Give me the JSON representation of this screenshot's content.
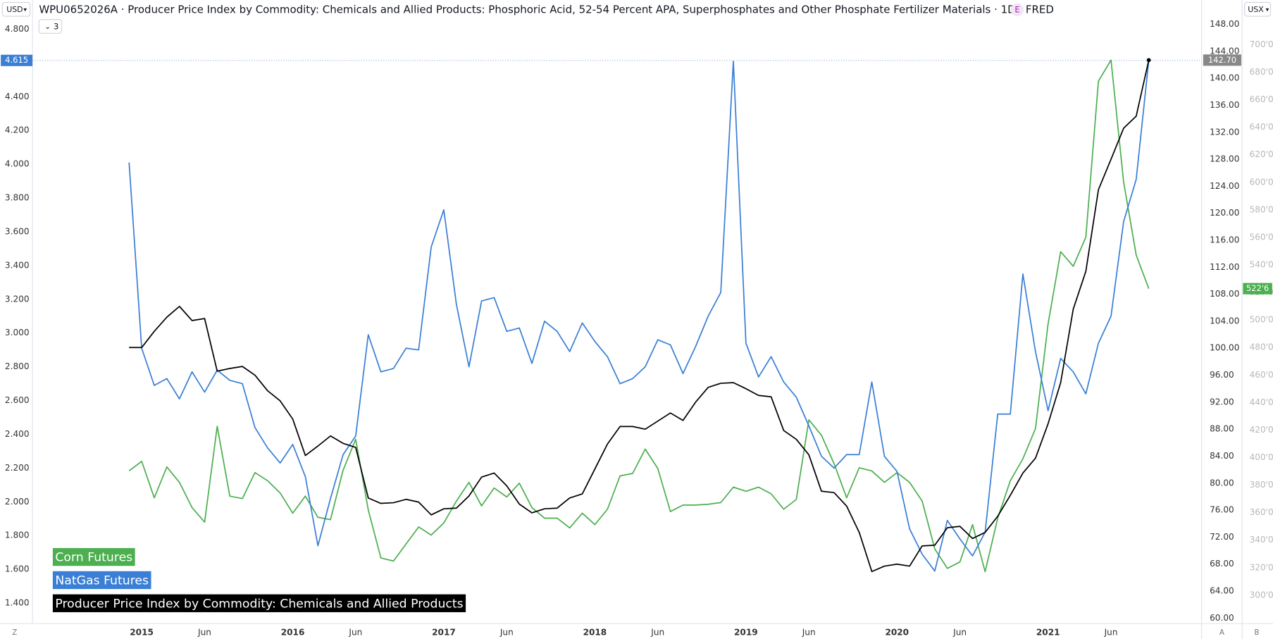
{
  "toolbar": {
    "left_currency": "USD",
    "right_currency": "USX",
    "indicator_badge": "E",
    "collapsed_count": 3,
    "bottom_left": "Z",
    "bottom_right_a": "A",
    "bottom_right_b": "B"
  },
  "chart_data": {
    "type": "line",
    "title": "WPU0652026A · Producer Price Index by Commodity: Chemicals and Allied Products: Phosphoric Acid, 52-54 Percent APA, Superphosphates and Other Phosphate Fertilizer Materials · 1D · FRED",
    "x": [
      "2014-12",
      "2015-01",
      "2015-02",
      "2015-03",
      "2015-04",
      "2015-05",
      "2015-06",
      "2015-07",
      "2015-08",
      "2015-09",
      "2015-10",
      "2015-11",
      "2015-12",
      "2016-01",
      "2016-02",
      "2016-03",
      "2016-04",
      "2016-05",
      "2016-06",
      "2016-07",
      "2016-08",
      "2016-09",
      "2016-10",
      "2016-11",
      "2016-12",
      "2017-01",
      "2017-02",
      "2017-03",
      "2017-04",
      "2017-05",
      "2017-06",
      "2017-07",
      "2017-08",
      "2017-09",
      "2017-10",
      "2017-11",
      "2017-12",
      "2018-01",
      "2018-02",
      "2018-03",
      "2018-04",
      "2018-05",
      "2018-06",
      "2018-07",
      "2018-08",
      "2018-09",
      "2018-10",
      "2018-11",
      "2018-12",
      "2019-01",
      "2019-02",
      "2019-03",
      "2019-04",
      "2019-05",
      "2019-06",
      "2019-07",
      "2019-08",
      "2019-09",
      "2019-10",
      "2019-11",
      "2019-12",
      "2020-01",
      "2020-02",
      "2020-03",
      "2020-04",
      "2020-05",
      "2020-06",
      "2020-07",
      "2020-08",
      "2020-09",
      "2020-10",
      "2020-11",
      "2020-12",
      "2021-01",
      "2021-02",
      "2021-03",
      "2021-04",
      "2021-05",
      "2021-06",
      "2021-07",
      "2021-08",
      "2021-09"
    ],
    "xticks": [
      {
        "value": "2015-01",
        "label": "2015"
      },
      {
        "value": "2015-06",
        "label": "Jun"
      },
      {
        "value": "2016-01",
        "label": "2016"
      },
      {
        "value": "2016-06",
        "label": "Jun"
      },
      {
        "value": "2017-01",
        "label": "2017"
      },
      {
        "value": "2017-06",
        "label": "Jun"
      },
      {
        "value": "2018-01",
        "label": "2018"
      },
      {
        "value": "2018-06",
        "label": "Jun"
      },
      {
        "value": "2019-01",
        "label": "2019"
      },
      {
        "value": "2019-06",
        "label": "Jun"
      },
      {
        "value": "2020-01",
        "label": "2020"
      },
      {
        "value": "2020-06",
        "label": "Jun"
      },
      {
        "value": "2021-01",
        "label": "2021"
      },
      {
        "value": "2021-06",
        "label": "Jun"
      }
    ],
    "ylim": [
      1.279,
      4.867
    ],
    "yticks": [
      {
        "value": 1.4,
        "label": "1.400"
      },
      {
        "value": 1.6,
        "label": "1.600"
      },
      {
        "value": 1.8,
        "label": "1.800"
      },
      {
        "value": 2.0,
        "label": "2.000"
      },
      {
        "value": 2.2,
        "label": "2.200"
      },
      {
        "value": 2.4,
        "label": "2.400"
      },
      {
        "value": 2.6,
        "label": "2.600"
      },
      {
        "value": 2.8,
        "label": "2.800"
      },
      {
        "value": 3.0,
        "label": "3.000"
      },
      {
        "value": 3.2,
        "label": "3.200"
      },
      {
        "value": 3.4,
        "label": "3.400"
      },
      {
        "value": 3.6,
        "label": "3.600"
      },
      {
        "value": 3.8,
        "label": "3.800"
      },
      {
        "value": 4.0,
        "label": "4.000"
      },
      {
        "value": 4.2,
        "label": "4.200"
      },
      {
        "value": 4.4,
        "label": "4.400"
      },
      {
        "value": 4.8,
        "label": "4.800"
      }
    ],
    "y2lim": [
      59.19,
      148.96
    ],
    "y2ticks": [
      {
        "value": 60,
        "label": "60.00"
      },
      {
        "value": 64,
        "label": "64.00"
      },
      {
        "value": 68,
        "label": "68.00"
      },
      {
        "value": 72,
        "label": "72.00"
      },
      {
        "value": 76,
        "label": "76.00"
      },
      {
        "value": 80,
        "label": "80.00"
      },
      {
        "value": 84,
        "label": "84.00"
      },
      {
        "value": 88,
        "label": "88.00"
      },
      {
        "value": 92,
        "label": "92.00"
      },
      {
        "value": 96,
        "label": "96.00"
      },
      {
        "value": 100,
        "label": "100.00"
      },
      {
        "value": 104,
        "label": "104.00"
      },
      {
        "value": 108,
        "label": "108.00"
      },
      {
        "value": 112,
        "label": "112.00"
      },
      {
        "value": 116,
        "label": "116.00"
      },
      {
        "value": 120,
        "label": "120.00"
      },
      {
        "value": 124,
        "label": "124.00"
      },
      {
        "value": 128,
        "label": "128.00"
      },
      {
        "value": 132,
        "label": "132.00"
      },
      {
        "value": 136,
        "label": "136.00"
      },
      {
        "value": 140,
        "label": "140.00"
      },
      {
        "value": 144,
        "label": "144.00"
      },
      {
        "value": 148,
        "label": "148.00"
      }
    ],
    "y3lim": [
      279.4,
      719.5
    ],
    "y3ticks": [
      {
        "value": 300,
        "label": "300'0"
      },
      {
        "value": 320,
        "label": "320'0"
      },
      {
        "value": 340,
        "label": "340'0"
      },
      {
        "value": 360,
        "label": "360'0"
      },
      {
        "value": 380,
        "label": "380'0"
      },
      {
        "value": 400,
        "label": "400'0"
      },
      {
        "value": 420,
        "label": "420'0"
      },
      {
        "value": 440,
        "label": "440'0"
      },
      {
        "value": 460,
        "label": "460'0"
      },
      {
        "value": 480,
        "label": "480'0"
      },
      {
        "value": 500,
        "label": "500'0"
      },
      {
        "value": 520,
        "label": "520'0"
      },
      {
        "value": 540,
        "label": "540'0"
      },
      {
        "value": 560,
        "label": "560'0"
      },
      {
        "value": 580,
        "label": "580'0"
      },
      {
        "value": 600,
        "label": "600'0"
      },
      {
        "value": 620,
        "label": "620'0"
      },
      {
        "value": 640,
        "label": "640'0"
      },
      {
        "value": 660,
        "label": "660'0"
      },
      {
        "value": 680,
        "label": "680'0"
      },
      {
        "value": 700,
        "label": "700'0"
      }
    ],
    "grid": false,
    "legend": "bottom-left",
    "series": [
      {
        "name": "Corn Futures",
        "color": "#4caf50",
        "axis": "y3",
        "values": [
          390.3,
          397.3,
          370.8,
          393.2,
          382.0,
          363.7,
          353.1,
          422.7,
          372.0,
          370.2,
          389.1,
          383.2,
          374.3,
          359.6,
          372.0,
          356.6,
          354.9,
          390.9,
          413.3,
          362.0,
          327.1,
          324.8,
          337.2,
          349.6,
          343.7,
          352.5,
          368.4,
          382.0,
          364.9,
          377.9,
          371.4,
          381.4,
          363.7,
          356.0,
          356.0,
          348.9,
          359.6,
          351.3,
          362.5,
          386.7,
          388.5,
          406.2,
          392.0,
          360.8,
          365.5,
          365.5,
          366.1,
          367.3,
          378.5,
          375.5,
          378.5,
          373.7,
          362.5,
          369.6,
          427.4,
          416.2,
          395.6,
          370.8,
          392.6,
          390.3,
          382.0,
          389.1,
          382.0,
          368.4,
          333.6,
          319.5,
          324.2,
          351.3,
          317.1,
          356.0,
          383.2,
          399.1,
          421.1,
          497.1,
          549.6,
          539.0,
          560.2,
          673.5,
          688.8,
          600.3,
          547.2,
          522.75
        ],
        "value_labels": [
          null,
          null,
          null,
          null,
          null,
          null,
          null,
          null,
          null,
          null,
          null,
          null,
          null,
          null,
          null,
          null,
          null,
          null,
          null,
          null,
          null,
          null,
          null,
          null,
          null,
          null,
          null,
          null,
          null,
          null,
          null,
          null,
          null,
          null,
          null,
          null,
          null,
          null,
          null,
          null,
          null,
          null,
          null,
          null,
          null,
          null,
          null,
          null,
          null,
          null,
          null,
          null,
          null,
          null,
          null,
          null,
          null,
          null,
          null,
          null,
          null,
          null,
          null,
          null,
          null,
          null,
          null,
          null,
          null,
          null,
          null,
          null,
          null,
          null,
          null,
          null,
          null,
          null,
          null,
          null,
          null,
          "522'6"
        ]
      },
      {
        "name": "NatGas Futures",
        "color": "#3a7fd5",
        "axis": "y",
        "values": [
          4.01,
          2.91,
          2.69,
          2.73,
          2.61,
          2.77,
          2.65,
          2.78,
          2.72,
          2.7,
          2.44,
          2.32,
          2.23,
          2.34,
          2.15,
          1.74,
          2.02,
          2.28,
          2.39,
          2.99,
          2.77,
          2.79,
          2.91,
          2.9,
          3.51,
          3.73,
          3.17,
          2.8,
          3.19,
          3.21,
          3.01,
          3.03,
          2.82,
          3.07,
          3.01,
          2.89,
          3.06,
          2.95,
          2.86,
          2.7,
          2.73,
          2.8,
          2.96,
          2.93,
          2.76,
          2.92,
          3.1,
          3.24,
          4.61,
          2.94,
          2.74,
          2.86,
          2.71,
          2.62,
          2.45,
          2.27,
          2.2,
          2.28,
          2.28,
          2.71,
          2.27,
          2.18,
          1.84,
          1.69,
          1.59,
          1.89,
          1.78,
          1.68,
          1.82,
          2.52,
          2.52,
          3.35,
          2.89,
          2.54,
          2.85,
          2.77,
          2.64,
          2.94,
          3.1,
          3.66,
          3.91,
          4.615
        ],
        "value_labels": [
          null,
          null,
          null,
          null,
          null,
          null,
          null,
          null,
          null,
          null,
          null,
          null,
          null,
          null,
          null,
          null,
          null,
          null,
          null,
          null,
          null,
          null,
          null,
          null,
          null,
          null,
          null,
          null,
          null,
          null,
          null,
          null,
          null,
          null,
          null,
          null,
          null,
          null,
          null,
          null,
          null,
          null,
          null,
          null,
          null,
          null,
          null,
          null,
          null,
          null,
          null,
          null,
          null,
          null,
          null,
          null,
          null,
          null,
          null,
          null,
          null,
          null,
          null,
          null,
          null,
          null,
          null,
          null,
          null,
          null,
          null,
          null,
          null,
          null,
          null,
          null,
          null,
          null,
          null,
          null,
          null,
          "4.615"
        ]
      },
      {
        "name": "Producer Price Index by Commodity: Chemicals and Allied Products",
        "color": "#000000",
        "axis": "y2",
        "values": [
          100.1,
          100.1,
          102.5,
          104.6,
          106.2,
          104.1,
          104.4,
          96.6,
          97.0,
          97.3,
          96.0,
          93.7,
          92.2,
          89.5,
          84.1,
          85.5,
          87.0,
          85.9,
          85.3,
          77.8,
          77.0,
          77.1,
          77.6,
          77.2,
          75.3,
          76.2,
          76.3,
          78.1,
          80.9,
          81.5,
          79.6,
          76.9,
          75.6,
          76.2,
          76.3,
          77.8,
          78.4,
          82.1,
          85.8,
          88.4,
          88.4,
          88.0,
          89.2,
          90.4,
          89.3,
          92.0,
          94.2,
          94.8,
          94.9,
          94.0,
          93.0,
          92.8,
          87.8,
          86.5,
          84.2,
          78.8,
          78.6,
          76.6,
          72.7,
          66.9,
          67.7,
          68.0,
          67.7,
          70.7,
          70.8,
          73.4,
          73.6,
          71.8,
          72.7,
          75.1,
          78.2,
          81.5,
          83.7,
          88.8,
          94.9,
          105.8,
          111.4,
          123.5,
          128.0,
          132.6,
          134.4,
          142.7
        ],
        "value_labels": [
          null,
          null,
          null,
          null,
          null,
          null,
          null,
          null,
          null,
          null,
          null,
          null,
          null,
          null,
          null,
          null,
          null,
          null,
          null,
          null,
          null,
          null,
          null,
          null,
          null,
          null,
          null,
          null,
          null,
          null,
          null,
          null,
          null,
          null,
          null,
          null,
          null,
          null,
          null,
          null,
          null,
          null,
          null,
          null,
          null,
          null,
          null,
          null,
          null,
          null,
          null,
          null,
          null,
          null,
          null,
          null,
          null,
          null,
          null,
          null,
          null,
          null,
          null,
          null,
          null,
          null,
          null,
          null,
          null,
          null,
          null,
          null,
          null,
          null,
          null,
          null,
          null,
          null,
          null,
          null,
          null,
          "142.70"
        ]
      }
    ]
  }
}
